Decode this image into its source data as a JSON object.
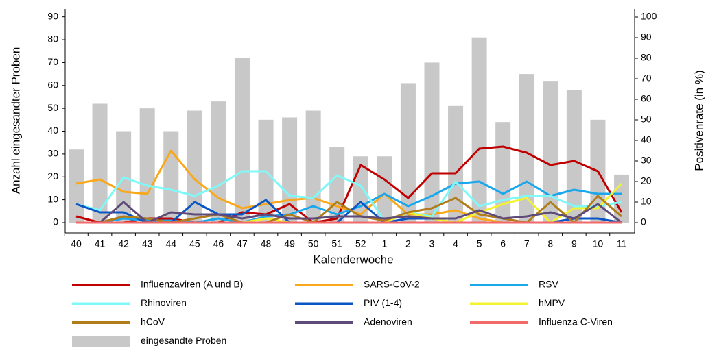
{
  "chart_data": {
    "type": "combo",
    "x_label": "Kalenderwoche",
    "y_label": "Anzahl eingesandter Proben",
    "y2_label": "Positivenrate (in %)",
    "categories": [
      "40",
      "41",
      "42",
      "43",
      "44",
      "45",
      "46",
      "47",
      "48",
      "49",
      "50",
      "51",
      "52",
      "1",
      "2",
      "3",
      "4",
      "5",
      "6",
      "7",
      "8",
      "9",
      "10",
      "11"
    ],
    "ylim": [
      -4.5,
      93.5
    ],
    "yticks": [
      0,
      10,
      20,
      30,
      40,
      50,
      60,
      70,
      80,
      90
    ],
    "y2lim": [
      -5,
      104
    ],
    "y2ticks": [
      0,
      10,
      20,
      30,
      40,
      50,
      60,
      70,
      80,
      90,
      100
    ],
    "series": [
      {
        "name": "Influenzaviren (A und B)",
        "type": "line",
        "axis": "y2",
        "color": "#c00000",
        "values": [
          3,
          0,
          0,
          2,
          2,
          0,
          0,
          5,
          4,
          9,
          0,
          2,
          28,
          21,
          12,
          24,
          24,
          36,
          37,
          34,
          28,
          30,
          25,
          5
        ]
      },
      {
        "name": "SARS-CoV-2",
        "type": "line",
        "axis": "y2",
        "color": "#f9a81b",
        "values": [
          19,
          21,
          15,
          14,
          35,
          21,
          12,
          7,
          9,
          11,
          12,
          8,
          4,
          14,
          4,
          4,
          6,
          2,
          0,
          0,
          0,
          0,
          0,
          0
        ]
      },
      {
        "name": "RSV",
        "type": "line",
        "axis": "y2",
        "color": "#1aa7ec",
        "values": [
          0,
          0,
          2,
          1,
          1,
          0,
          2,
          0,
          3,
          4,
          8,
          4,
          8,
          14,
          8,
          13,
          19,
          20,
          14,
          20,
          13,
          16,
          14,
          14
        ]
      },
      {
        "name": "Rhinoviren",
        "type": "line",
        "axis": "y2",
        "color": "#80f8f8",
        "values": [
          9,
          6,
          22,
          18,
          16,
          13,
          18,
          25,
          25,
          13,
          12,
          23,
          18,
          1,
          5,
          3,
          20,
          8,
          11,
          13,
          13,
          8,
          8,
          10
        ]
      },
      {
        "name": "PIV (1-4)",
        "type": "line",
        "axis": "y2",
        "color": "#0a56c4",
        "values": [
          9,
          5,
          5,
          0,
          0,
          10,
          4,
          4,
          11,
          0,
          0,
          0,
          10,
          0,
          2,
          2,
          0,
          0,
          0,
          0,
          0,
          2,
          2,
          0
        ]
      },
      {
        "name": "hMPV",
        "type": "line",
        "axis": "y2",
        "color": "#f2f230",
        "values": [
          0,
          0,
          0,
          0,
          0,
          0,
          0,
          0,
          2,
          0,
          0,
          0,
          0,
          0,
          5,
          2,
          0,
          5,
          9,
          12,
          0,
          7,
          7,
          19
        ]
      },
      {
        "name": "hCoV",
        "type": "line",
        "axis": "y2",
        "color": "#b07d1a",
        "values": [
          0,
          0,
          3,
          2,
          0,
          2,
          4,
          0,
          0,
          4,
          0,
          10,
          3,
          1,
          5,
          7,
          12,
          4,
          2,
          0,
          10,
          0,
          13,
          3
        ]
      },
      {
        "name": "Adenoviren",
        "type": "line",
        "axis": "y2",
        "color": "#5f4b7a",
        "values": [
          0,
          0,
          10,
          0,
          5,
          4,
          4,
          2,
          4,
          2,
          2,
          3,
          3,
          2,
          3,
          2,
          2,
          6,
          2,
          3,
          5,
          2,
          9,
          0
        ]
      },
      {
        "name": "Influenza C-Viren",
        "type": "line",
        "axis": "y2",
        "color": "#f06a6a",
        "values": [
          0,
          0,
          0,
          0,
          0,
          0,
          0,
          0,
          0,
          0,
          0,
          0,
          0,
          0,
          0,
          0,
          0,
          0,
          0,
          0,
          0,
          0,
          0,
          0
        ]
      },
      {
        "name": "eingesandte Proben",
        "type": "bar",
        "axis": "y",
        "color": "#c8c8c8",
        "values": [
          32,
          52,
          40,
          50,
          40,
          49,
          53,
          72,
          45,
          46,
          49,
          33,
          29,
          29,
          61,
          70,
          51,
          81,
          44,
          65,
          62,
          58,
          45,
          21
        ]
      }
    ]
  }
}
